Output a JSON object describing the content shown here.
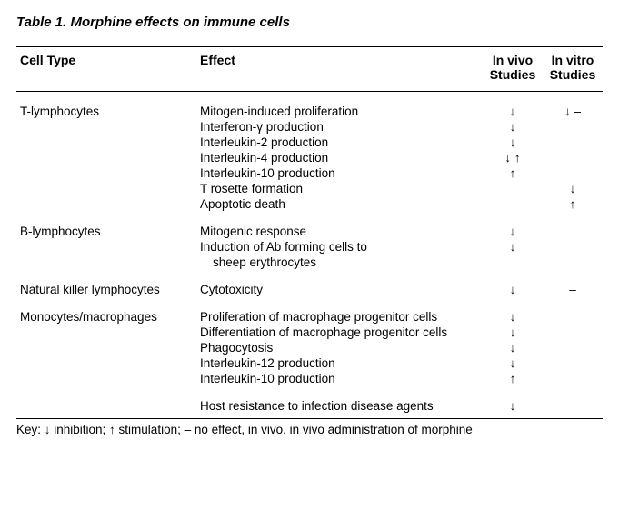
{
  "title": "Table 1. Morphine effects on immune cells",
  "headers": {
    "cell_type": "Cell Type",
    "effect": "Effect",
    "in_vivo": "In vivo Studies",
    "in_vitro": "In vitro Studies"
  },
  "rows": {
    "r1": {
      "cell": "T-lymphocytes",
      "effect": "Mitogen-induced proliferation",
      "vivo": "↓",
      "vitro": "↓ –"
    },
    "r2": {
      "cell": "",
      "effect": "Interferon-γ production",
      "vivo": "↓",
      "vitro": ""
    },
    "r3": {
      "cell": "",
      "effect": "Interleukin-2 production",
      "vivo": "↓",
      "vitro": ""
    },
    "r4": {
      "cell": "",
      "effect": "Interleukin-4 production",
      "vivo": "↓ ↑",
      "vitro": ""
    },
    "r5": {
      "cell": "",
      "effect": "Interleukin-10 production",
      "vivo": "↑",
      "vitro": ""
    },
    "r6": {
      "cell": "",
      "effect": "T rosette formation",
      "vivo": "",
      "vitro": "↓"
    },
    "r7": {
      "cell": "",
      "effect": "Apoptotic death",
      "vivo": "",
      "vitro": "↑"
    },
    "r8": {
      "cell": "B-lymphocytes",
      "effect": "Mitogenic response",
      "vivo": "↓",
      "vitro": ""
    },
    "r9": {
      "cell": "",
      "effect": "Induction of Ab forming cells to",
      "vivo": "↓",
      "vitro": ""
    },
    "r9b": {
      "cell": "",
      "effect": "sheep erythrocytes",
      "vivo": "",
      "vitro": ""
    },
    "r10": {
      "cell": "Natural killer lymphocytes",
      "effect": "Cytotoxicity",
      "vivo": "↓",
      "vitro": "–"
    },
    "r11": {
      "cell": "Monocytes/macrophages",
      "effect": "Proliferation of macrophage progenitor cells",
      "vivo": "↓",
      "vitro": ""
    },
    "r12": {
      "cell": "",
      "effect": "Differentiation of macrophage progenitor cells",
      "vivo": "↓",
      "vitro": ""
    },
    "r13": {
      "cell": "",
      "effect": "Phagocytosis",
      "vivo": "↓",
      "vitro": ""
    },
    "r14": {
      "cell": "",
      "effect": "Interleukin-12 production",
      "vivo": "↓",
      "vitro": ""
    },
    "r15": {
      "cell": "",
      "effect": "Interleukin-10 production",
      "vivo": "↑",
      "vitro": ""
    },
    "r16": {
      "cell": "",
      "effect": "Host resistance to infection disease agents",
      "vivo": "↓",
      "vitro": ""
    }
  },
  "key": "Key: ↓ inhibition; ↑ stimulation; – no effect, in vivo, in vivo administration of morphine"
}
